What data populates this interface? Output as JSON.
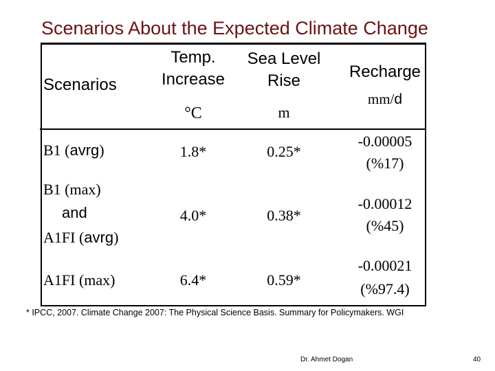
{
  "title": "Scenarios About the Expected Climate Change",
  "header": {
    "scenarios": "Scenarios",
    "temp_line1": "Temp.",
    "temp_line2": "Increase",
    "temp_unit": "°C",
    "sea_line1": "Sea Level",
    "sea_line2": "Rise",
    "sea_unit": "m",
    "recharge_label": "Recharge",
    "recharge_unit_a": "mm/",
    "recharge_unit_b": "d"
  },
  "rows": [
    {
      "scenario_a": "B1 (",
      "scenario_b": "avrg",
      "scenario_c": ")",
      "temp": "1.8*",
      "sea": "0.25*",
      "recharge": "-0.00005",
      "recharge_pct": "(%17)"
    },
    {
      "scenario_line1": "B1 (max)",
      "scenario_line2": "and",
      "scenario_a": "A1FI (",
      "scenario_b": "avrg",
      "scenario_c": ")",
      "temp": "4.0*",
      "sea": "0.38*",
      "recharge": "-0.00012",
      "recharge_pct": "(%45)"
    },
    {
      "scenario": "A1FI (max)",
      "temp": "6.4*",
      "sea": "0.59*",
      "recharge": "-0.00021",
      "recharge_pct": "(%97.4)"
    }
  ],
  "footnote": "* IPCC, 2007. Climate Change 2007: The Physical Science Basis. Summary for Policymakers. WGI",
  "author": "Dr. Ahmet Dogan",
  "page_number": "40"
}
